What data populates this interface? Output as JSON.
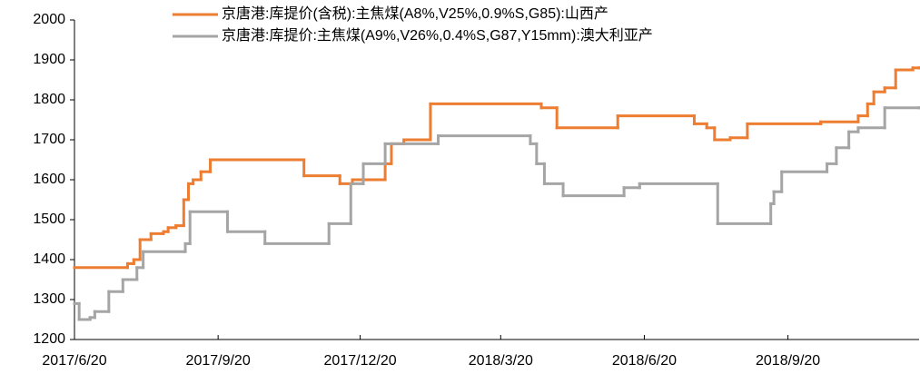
{
  "chart_data": {
    "type": "line",
    "step": true,
    "series": [
      {
        "name": "京唐港:库提价(含税):主焦煤(A8%,V25%,0.9%S,G85):山西产",
        "color": "#ed7d31",
        "x": [
          "2017/6/20",
          "2017/7/24",
          "2017/7/28",
          "2017/8/1",
          "2017/8/8",
          "2017/8/16",
          "2017/8/19",
          "2017/8/24",
          "2017/8/29",
          "2017/9/1",
          "2017/9/4",
          "2017/9/9",
          "2017/9/15",
          "2017/11/14",
          "2017/12/7",
          "2017/12/15",
          "2018/1/5",
          "2018/1/9",
          "2018/1/17",
          "2018/2/3",
          "2018/4/15",
          "2018/4/25",
          "2018/6/3",
          "2018/7/22",
          "2018/7/30",
          "2018/8/4",
          "2018/8/14",
          "2018/8/25",
          "2018/10/11",
          "2018/11/4",
          "2018/11/10",
          "2018/11/14",
          "2018/11/21",
          "2018/11/28",
          "2018/12/9",
          "2018/12/13"
        ],
        "values": [
          1380,
          1390,
          1400,
          1450,
          1465,
          1470,
          1480,
          1485,
          1550,
          1590,
          1600,
          1620,
          1650,
          1610,
          1590,
          1600,
          1640,
          1690,
          1700,
          1790,
          1780,
          1730,
          1760,
          1740,
          1730,
          1700,
          1705,
          1740,
          1745,
          1760,
          1790,
          1820,
          1830,
          1875,
          1880,
          1880
        ]
      },
      {
        "name": "京唐港:库提价:主焦煤(A9%,V26%,0.4%S,G87,Y15mm):澳大利亚产",
        "color": "#a5a5a5",
        "x": [
          "2017/6/20",
          "2017/6/23",
          "2017/6/30",
          "2017/7/3",
          "2017/7/12",
          "2017/7/21",
          "2017/7/30",
          "2017/8/3",
          "2017/8/30",
          "2017/9/2",
          "2017/9/26",
          "2017/10/20",
          "2017/11/30",
          "2017/12/14",
          "2017/12/22",
          "2018/1/5",
          "2018/2/8",
          "2018/4/8",
          "2018/4/12",
          "2018/4/17",
          "2018/4/29",
          "2018/6/7",
          "2018/6/17",
          "2018/8/6",
          "2018/9/9",
          "2018/9/11",
          "2018/9/16",
          "2018/10/15",
          "2018/10/21",
          "2018/10/29",
          "2018/11/4",
          "2018/11/21",
          "2018/12/13"
        ],
        "values": [
          1290,
          1250,
          1255,
          1270,
          1320,
          1350,
          1380,
          1420,
          1440,
          1520,
          1470,
          1440,
          1490,
          1590,
          1640,
          1690,
          1710,
          1690,
          1640,
          1590,
          1560,
          1580,
          1590,
          1490,
          1540,
          1570,
          1620,
          1640,
          1680,
          1720,
          1730,
          1780,
          1780
        ]
      }
    ],
    "xlim": [
      "2017/6/20",
      "2018/12/13"
    ],
    "xticks": [
      "2017/6/20",
      "2017/9/20",
      "2017/12/20",
      "2018/3/20",
      "2018/6/20",
      "2018/9/20"
    ],
    "ylim": [
      1200,
      2000
    ],
    "yticks": [
      1200,
      1300,
      1400,
      1500,
      1600,
      1700,
      1800,
      1900,
      2000
    ]
  }
}
